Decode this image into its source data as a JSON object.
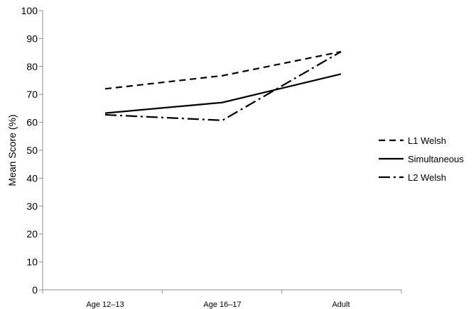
{
  "chart_data": {
    "type": "line",
    "title": "",
    "xlabel": "",
    "ylabel": "Mean Score (%)",
    "categories": [
      "Age 12–13",
      "Age 16–17",
      "Adult"
    ],
    "ylim": [
      0,
      100
    ],
    "yticks": [
      0,
      10,
      20,
      30,
      40,
      50,
      60,
      70,
      80,
      90,
      100
    ],
    "grid": false,
    "legend_position": "right",
    "series": [
      {
        "name": "L1 Welsh",
        "values": [
          72,
          76.7,
          85.3
        ],
        "dash": "dashed",
        "color": "#000000"
      },
      {
        "name": "Simultaneous",
        "values": [
          63.3,
          67.1,
          77.3
        ],
        "dash": "solid",
        "color": "#000000"
      },
      {
        "name": "L2 Welsh",
        "values": [
          62.7,
          60.7,
          85.3
        ],
        "dash": "dash-dot",
        "color": "#000000"
      }
    ]
  }
}
